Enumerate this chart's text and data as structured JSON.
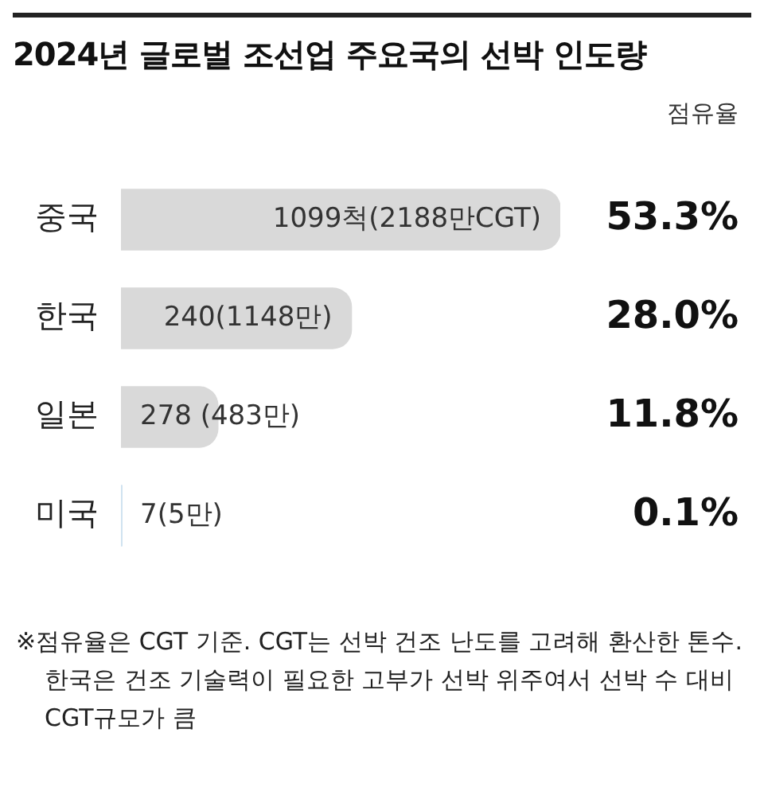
{
  "chart_data": {
    "type": "bar",
    "orientation": "horizontal",
    "title": "2024년 글로벌 조선업 주요국의 선박 인도량",
    "categories": [
      "중국",
      "한국",
      "일본",
      "미국"
    ],
    "values": [
      2188,
      1148,
      483,
      5
    ],
    "colors": [
      "#d9d9d9",
      "#d9d9d9",
      "#d9d9d9",
      "#cfe2f0"
    ],
    "value_labels": [
      "1099척(2188만CGT)",
      "240(1148만)",
      "278 (483만)",
      "7(5만)"
    ],
    "annotations": [
      "점유율",
      "53.3%",
      "28.0%",
      "11.8%",
      "0.1%",
      "※점유율은 CGT 기준. CGT는 선박 건조 난도를 고려해 환산한 톤수. 한국은 건조 기술력이 필요한 고부가 선박 위주여서 선박 수 대비 CGT규모가 큼"
    ],
    "grid": false,
    "legend": false
  }
}
